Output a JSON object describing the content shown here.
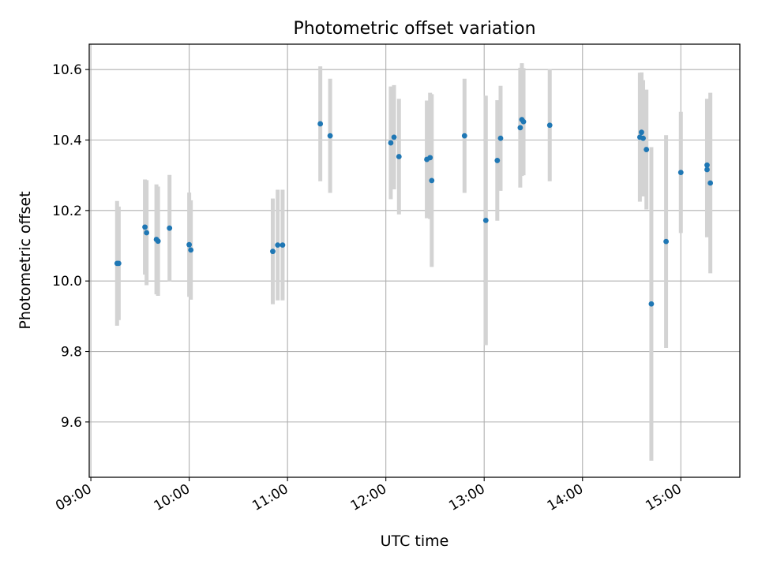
{
  "chart_data": {
    "type": "scatter",
    "title": "Photometric offset variation",
    "xlabel": "UTC time",
    "ylabel": "Photometric offset",
    "x_axis_kind": "time of day (HH:MM)",
    "xlim": [
      "08:59",
      "15:36"
    ],
    "ylim": [
      9.443,
      10.672
    ],
    "xticks": [
      "09:00",
      "10:00",
      "11:00",
      "12:00",
      "13:00",
      "14:00",
      "15:00"
    ],
    "yticks": [
      9.6,
      9.8,
      10.0,
      10.2,
      10.4,
      10.6
    ],
    "ytick_labels": [
      "9.6",
      "9.8",
      "10.0",
      "10.2",
      "10.4",
      "10.6"
    ],
    "grid": true,
    "legend": "none",
    "colors": {
      "point": "#1f77b4",
      "errorbar": "#d3d3d3",
      "grid": "#b0b0b0"
    },
    "points": [
      {
        "x": "09:16",
        "y": 10.05,
        "ylo": 9.873,
        "yhi": 10.227
      },
      {
        "x": "09:17",
        "y": 10.05,
        "ylo": 9.889,
        "yhi": 10.211
      },
      {
        "x": "09:33",
        "y": 10.153,
        "ylo": 10.018,
        "yhi": 10.288
      },
      {
        "x": "09:34",
        "y": 10.137,
        "ylo": 9.988,
        "yhi": 10.286
      },
      {
        "x": "09:40",
        "y": 10.118,
        "ylo": 9.962,
        "yhi": 10.274
      },
      {
        "x": "09:41",
        "y": 10.113,
        "ylo": 9.958,
        "yhi": 10.268
      },
      {
        "x": "09:48",
        "y": 10.15,
        "ylo": 9.999,
        "yhi": 10.301
      },
      {
        "x": "10:00",
        "y": 10.103,
        "ylo": 9.955,
        "yhi": 10.251
      },
      {
        "x": "10:01",
        "y": 10.088,
        "ylo": 9.947,
        "yhi": 10.229
      },
      {
        "x": "10:51",
        "y": 10.084,
        "ylo": 9.934,
        "yhi": 10.234
      },
      {
        "x": "10:54",
        "y": 10.102,
        "ylo": 9.945,
        "yhi": 10.259
      },
      {
        "x": "10:57",
        "y": 10.102,
        "ylo": 9.945,
        "yhi": 10.259
      },
      {
        "x": "11:20",
        "y": 10.446,
        "ylo": 10.283,
        "yhi": 10.609
      },
      {
        "x": "11:26",
        "y": 10.412,
        "ylo": 10.25,
        "yhi": 10.574
      },
      {
        "x": "12:03",
        "y": 10.392,
        "ylo": 10.232,
        "yhi": 10.552
      },
      {
        "x": "12:05",
        "y": 10.408,
        "ylo": 10.26,
        "yhi": 10.556
      },
      {
        "x": "12:08",
        "y": 10.353,
        "ylo": 10.189,
        "yhi": 10.517
      },
      {
        "x": "12:25",
        "y": 10.345,
        "ylo": 10.178,
        "yhi": 10.512
      },
      {
        "x": "12:27",
        "y": 10.35,
        "ylo": 10.176,
        "yhi": 10.534
      },
      {
        "x": "12:28",
        "y": 10.285,
        "ylo": 10.04,
        "yhi": 10.53
      },
      {
        "x": "12:48",
        "y": 10.412,
        "ylo": 10.25,
        "yhi": 10.574
      },
      {
        "x": "13:01",
        "y": 10.172,
        "ylo": 9.818,
        "yhi": 10.526
      },
      {
        "x": "13:08",
        "y": 10.342,
        "ylo": 10.171,
        "yhi": 10.513
      },
      {
        "x": "13:10",
        "y": 10.405,
        "ylo": 10.256,
        "yhi": 10.554
      },
      {
        "x": "13:22",
        "y": 10.435,
        "ylo": 10.265,
        "yhi": 10.605
      },
      {
        "x": "13:23",
        "y": 10.458,
        "ylo": 10.298,
        "yhi": 10.618
      },
      {
        "x": "13:24",
        "y": 10.452,
        "ylo": 10.3,
        "yhi": 10.604
      },
      {
        "x": "13:40",
        "y": 10.442,
        "ylo": 10.283,
        "yhi": 10.601
      },
      {
        "x": "14:35",
        "y": 10.408,
        "ylo": 10.225,
        "yhi": 10.591
      },
      {
        "x": "14:36",
        "y": 10.422,
        "ylo": 10.252,
        "yhi": 10.592
      },
      {
        "x": "14:37",
        "y": 10.405,
        "ylo": 10.24,
        "yhi": 10.57
      },
      {
        "x": "14:39",
        "y": 10.373,
        "ylo": 10.203,
        "yhi": 10.543
      },
      {
        "x": "14:42",
        "y": 9.935,
        "ylo": 9.49,
        "yhi": 10.38
      },
      {
        "x": "14:51",
        "y": 10.112,
        "ylo": 9.81,
        "yhi": 10.414
      },
      {
        "x": "15:00",
        "y": 10.308,
        "ylo": 10.136,
        "yhi": 10.48
      },
      {
        "x": "15:16",
        "y": 10.329,
        "ylo": 10.127,
        "yhi": 10.517
      },
      {
        "x": "15:16",
        "y": 10.316,
        "ylo": 10.124,
        "yhi": 10.508
      },
      {
        "x": "15:18",
        "y": 10.278,
        "ylo": 10.022,
        "yhi": 10.534
      }
    ]
  }
}
